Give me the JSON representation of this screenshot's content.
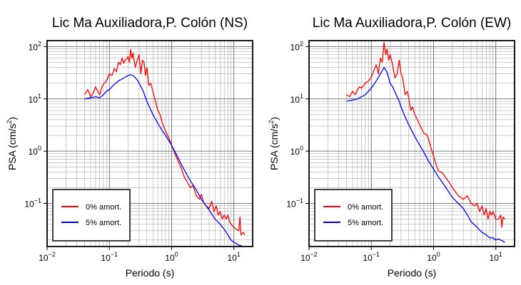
{
  "chart_data": [
    {
      "type": "line",
      "title": "Lic Ma Auxiliadora,P. Colón (NS)",
      "xlabel": "Periodo (s)",
      "ylabel": "PSA (cm/s²)",
      "ylabel_base": "PSA (cm/s",
      "ylabel_sup": "2",
      "ylabel_end": ")",
      "xscale": "log",
      "yscale": "log",
      "xlim": [
        0.01,
        20
      ],
      "ylim": [
        0.015,
        130
      ],
      "grid": true,
      "legend_position": "bottom-left",
      "x_ticks": [
        {
          "value": 0.01,
          "base": "10",
          "exp": "−2"
        },
        {
          "value": 0.1,
          "base": "10",
          "exp": "−1"
        },
        {
          "value": 1,
          "base": "10",
          "exp": "0"
        },
        {
          "value": 10,
          "base": "10",
          "exp": "1"
        }
      ],
      "y_ticks": [
        {
          "value": 0.1,
          "base": "10",
          "exp": "−1"
        },
        {
          "value": 1,
          "base": "10",
          "exp": "0"
        },
        {
          "value": 10,
          "base": "10",
          "exp": "1"
        },
        {
          "value": 100,
          "base": "10",
          "exp": "2"
        }
      ],
      "series": [
        {
          "name": "0% amort.",
          "color": "#ff0000",
          "x": [
            0.04,
            0.045,
            0.05,
            0.055,
            0.06,
            0.065,
            0.07,
            0.075,
            0.08,
            0.09,
            0.1,
            0.11,
            0.12,
            0.13,
            0.14,
            0.15,
            0.16,
            0.17,
            0.18,
            0.19,
            0.2,
            0.21,
            0.22,
            0.23,
            0.24,
            0.26,
            0.28,
            0.3,
            0.32,
            0.34,
            0.36,
            0.38,
            0.4,
            0.43,
            0.46,
            0.5,
            0.55,
            0.6,
            0.65,
            0.7,
            0.8,
            0.9,
            1.0,
            1.2,
            1.4,
            1.6,
            1.8,
            2.0,
            2.2,
            2.5,
            2.8,
            3.0,
            3.3,
            3.6,
            4.0,
            4.4,
            4.8,
            5.2,
            5.6,
            6.0,
            6.5,
            7.0,
            7.5,
            8.0,
            8.5,
            9.0,
            10.0,
            11.0,
            12.0,
            12.5,
            13.0,
            14.0,
            15.0
          ],
          "y": [
            12,
            15,
            11,
            13,
            17,
            14,
            12,
            16,
            19,
            22,
            30,
            28,
            38,
            33,
            50,
            45,
            60,
            48,
            55,
            58,
            65,
            50,
            88,
            60,
            75,
            40,
            55,
            70,
            30,
            55,
            50,
            28,
            40,
            18,
            20,
            14,
            9,
            6,
            5,
            3.6,
            2.4,
            1.8,
            1.3,
            0.75,
            0.5,
            0.32,
            0.25,
            0.2,
            0.22,
            0.14,
            0.12,
            0.15,
            0.1,
            0.09,
            0.08,
            0.11,
            0.07,
            0.09,
            0.06,
            0.07,
            0.05,
            0.06,
            0.05,
            0.06,
            0.045,
            0.04,
            0.035,
            0.032,
            0.03,
            0.055,
            0.025,
            0.028,
            0.025
          ]
        },
        {
          "name": "5% amort.",
          "color": "#0000ff",
          "x": [
            0.04,
            0.05,
            0.06,
            0.07,
            0.08,
            0.09,
            0.1,
            0.12,
            0.14,
            0.16,
            0.18,
            0.2,
            0.22,
            0.25,
            0.28,
            0.3,
            0.35,
            0.4,
            0.5,
            0.6,
            0.7,
            0.8,
            1.0,
            1.2,
            1.5,
            2.0,
            2.5,
            3.0,
            4.0,
            5.0,
            6.0,
            7.0,
            8.0,
            9.0,
            10.0,
            12.0,
            14.0
          ],
          "y": [
            10,
            10.5,
            11,
            10.5,
            12,
            14,
            15,
            19,
            22,
            24,
            26,
            28,
            29,
            27,
            23,
            20,
            14,
            9,
            5,
            3.4,
            2.5,
            2.0,
            1.3,
            0.85,
            0.5,
            0.27,
            0.18,
            0.12,
            0.075,
            0.05,
            0.04,
            0.032,
            0.025,
            0.02,
            0.018,
            0.016,
            0.015
          ]
        }
      ]
    },
    {
      "type": "line",
      "title": "Lic Ma Auxiliadora,P. Colón (EW)",
      "xlabel": "Periodo (s)",
      "ylabel": "PSA (cm/s²)",
      "ylabel_base": "PSA (cm/s",
      "ylabel_sup": "2",
      "ylabel_end": ")",
      "xscale": "log",
      "yscale": "log",
      "xlim": [
        0.01,
        20
      ],
      "ylim": [
        0.015,
        130
      ],
      "grid": true,
      "legend_position": "bottom-left",
      "x_ticks": [
        {
          "value": 0.01,
          "base": "10",
          "exp": "−2"
        },
        {
          "value": 0.1,
          "base": "10",
          "exp": "−1"
        },
        {
          "value": 1,
          "base": "10",
          "exp": "0"
        },
        {
          "value": 10,
          "base": "10",
          "exp": "1"
        }
      ],
      "y_ticks": [
        {
          "value": 0.1,
          "base": "10",
          "exp": "−1"
        },
        {
          "value": 1,
          "base": "10",
          "exp": "0"
        },
        {
          "value": 10,
          "base": "10",
          "exp": "1"
        },
        {
          "value": 100,
          "base": "10",
          "exp": "2"
        }
      ],
      "series": [
        {
          "name": "0% amort.",
          "color": "#ff0000",
          "x": [
            0.04,
            0.045,
            0.05,
            0.055,
            0.06,
            0.065,
            0.07,
            0.08,
            0.09,
            0.1,
            0.11,
            0.12,
            0.13,
            0.14,
            0.15,
            0.16,
            0.17,
            0.18,
            0.19,
            0.2,
            0.22,
            0.24,
            0.26,
            0.28,
            0.3,
            0.32,
            0.35,
            0.38,
            0.4,
            0.43,
            0.46,
            0.5,
            0.55,
            0.6,
            0.65,
            0.7,
            0.8,
            0.9,
            1.0,
            1.1,
            1.2,
            1.4,
            1.6,
            1.8,
            2.0,
            2.5,
            3.0,
            3.5,
            4.0,
            4.5,
            5.0,
            5.5,
            6.0,
            6.5,
            7.0,
            7.5,
            8.0,
            8.5,
            9.0,
            10.0,
            11.0,
            12.0,
            12.5,
            13.0,
            14.0
          ],
          "y": [
            12,
            11,
            14,
            12,
            15,
            17,
            16,
            20,
            22,
            26,
            35,
            45,
            30,
            60,
            50,
            120,
            70,
            90,
            55,
            70,
            45,
            25,
            30,
            55,
            30,
            25,
            12,
            14,
            10,
            6,
            7,
            5,
            4,
            3.2,
            2.6,
            2.2,
            2.0,
            1.2,
            0.8,
            0.55,
            0.42,
            0.38,
            0.3,
            0.25,
            0.2,
            0.14,
            0.12,
            0.14,
            0.1,
            0.09,
            0.1,
            0.07,
            0.09,
            0.06,
            0.08,
            0.05,
            0.07,
            0.06,
            0.07,
            0.05,
            0.05,
            0.06,
            0.035,
            0.055,
            0.05
          ]
        },
        {
          "name": "5% amort.",
          "color": "#0000ff",
          "x": [
            0.04,
            0.05,
            0.06,
            0.07,
            0.08,
            0.09,
            0.1,
            0.12,
            0.14,
            0.16,
            0.18,
            0.2,
            0.22,
            0.25,
            0.28,
            0.3,
            0.35,
            0.4,
            0.5,
            0.6,
            0.7,
            0.8,
            1.0,
            1.2,
            1.5,
            2.0,
            2.5,
            3.0,
            3.5,
            4.0,
            5.0,
            6.0,
            7.0,
            8.0,
            9.0,
            10.0,
            11.0,
            12.0,
            13.0,
            14.0
          ],
          "y": [
            9,
            9.5,
            10,
            11,
            12,
            14,
            16,
            22,
            30,
            40,
            32,
            20,
            17,
            12,
            9,
            7,
            4.5,
            3.2,
            1.9,
            1.3,
            0.95,
            0.7,
            0.45,
            0.32,
            0.22,
            0.13,
            0.1,
            0.08,
            0.06,
            0.045,
            0.035,
            0.028,
            0.025,
            0.022,
            0.022,
            0.02,
            0.021,
            0.02,
            0.019,
            0.018
          ]
        }
      ]
    }
  ]
}
